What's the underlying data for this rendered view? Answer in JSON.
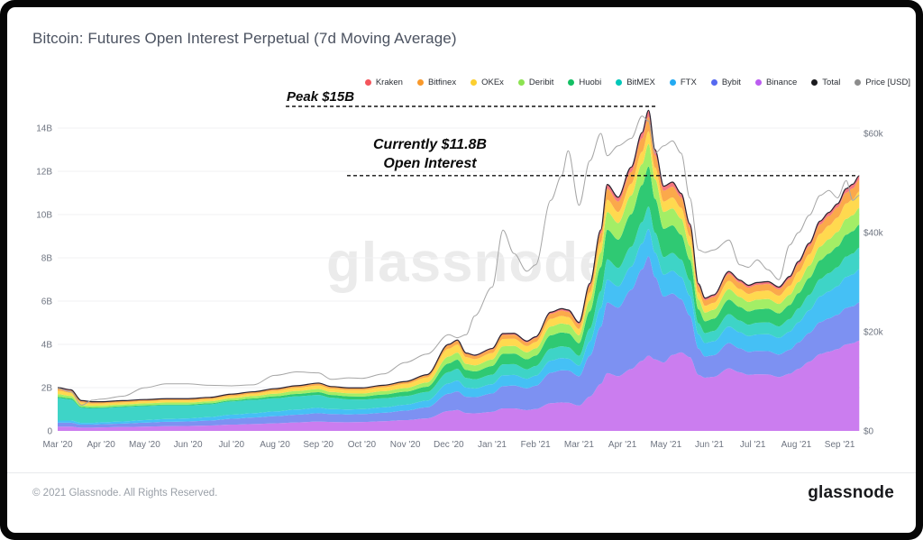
{
  "header": {
    "title": "Bitcoin: Futures Open Interest Perpetual (7d Moving Average)"
  },
  "watermark": "glassnode",
  "footer": {
    "copyright": "© 2021 Glassnode. All Rights Reserved.",
    "brand": "glassnode"
  },
  "annotations": {
    "peak": {
      "text": "Peak $15B",
      "value_b": 15,
      "t_from": 5.25,
      "t_to": 13.78
    },
    "current": {
      "line1": "Currently $11.8B",
      "line2": "Open Interest",
      "value_b": 11.8,
      "t_from": 6.66,
      "t_to": 18.42
    }
  },
  "chart_data": {
    "type": "area",
    "stacking": "normal",
    "title": "Bitcoin: Futures Open Interest Perpetual (7d Moving Average)",
    "x_unit": "months since 2020-03-01",
    "grid": "horizontal",
    "legend_position": "top-right",
    "x_tick_labels": [
      "Mar '20",
      "Apr '20",
      "May '20",
      "Jun '20",
      "Jul '20",
      "Aug '20",
      "Sep '20",
      "Oct '20",
      "Nov '20",
      "Dec '20",
      "Jan '21",
      "Feb '21",
      "Mar '21",
      "Apr '21",
      "May '21",
      "Jun '21",
      "Jul '21",
      "Aug '21",
      "Sep '21"
    ],
    "y_left": {
      "title": "Open Interest (USD billions)",
      "range": [
        0,
        15.3
      ],
      "ticks": [
        {
          "v": 0,
          "label": "0"
        },
        {
          "v": 2,
          "label": "2B"
        },
        {
          "v": 4,
          "label": "4B"
        },
        {
          "v": 6,
          "label": "6B"
        },
        {
          "v": 8,
          "label": "8B"
        },
        {
          "v": 10,
          "label": "10B"
        },
        {
          "v": 12,
          "label": "12B"
        },
        {
          "v": 14,
          "label": "14B"
        }
      ]
    },
    "y_right": {
      "title": "Price (USD)",
      "range": [
        0,
        66
      ],
      "ticks": [
        {
          "v": 0,
          "label": "$0"
        },
        {
          "v": 20,
          "label": "$20k"
        },
        {
          "v": 40,
          "label": "$40k"
        },
        {
          "v": 60,
          "label": "$60k"
        }
      ]
    },
    "x": [
      0,
      0.3,
      0.55,
      0.8,
      1,
      1.5,
      2,
      2.5,
      3,
      3.5,
      4,
      4.5,
      5,
      5.5,
      6,
      6.3,
      6.7,
      7,
      7.5,
      8,
      8.5,
      9,
      9.2,
      9.4,
      9.6,
      10,
      10.25,
      10.5,
      10.8,
      11,
      11.35,
      11.6,
      11.75,
      12,
      12.25,
      12.5,
      12.65,
      12.9,
      13.2,
      13.45,
      13.6,
      13.75,
      13.95,
      14.15,
      14.35,
      14.55,
      14.75,
      14.9,
      15.1,
      15.45,
      15.7,
      15.9,
      16.1,
      16.35,
      16.6,
      16.85,
      17.05,
      17.3,
      17.55,
      17.75,
      17.95,
      18.15,
      18.3,
      18.45
    ],
    "series": [
      {
        "name": "Binance",
        "unit": "USD billions",
        "dot": "#bb5cf0",
        "fill": "#cb7def",
        "values": [
          0.2,
          0.2,
          0.15,
          0.15,
          0.16,
          0.18,
          0.2,
          0.22,
          0.23,
          0.25,
          0.29,
          0.32,
          0.35,
          0.39,
          0.43,
          0.41,
          0.4,
          0.41,
          0.45,
          0.5,
          0.58,
          0.92,
          0.97,
          0.83,
          0.81,
          0.88,
          1.04,
          1.04,
          0.96,
          1.01,
          1.28,
          1.32,
          1.3,
          1.17,
          1.59,
          2.17,
          2.67,
          2.53,
          2.86,
          3.24,
          3.48,
          3.3,
          3.16,
          3.51,
          3.63,
          3.41,
          2.59,
          2.46,
          2.5,
          2.89,
          2.71,
          2.59,
          2.62,
          2.61,
          2.49,
          2.64,
          2.87,
          3.2,
          3.55,
          3.66,
          3.78,
          4.0,
          4.05,
          4.17
        ]
      },
      {
        "name": "Bybit",
        "unit": "USD billions",
        "dot": "#5569f0",
        "fill": "#7d91f2",
        "values": [
          0.18,
          0.18,
          0.14,
          0.14,
          0.15,
          0.16,
          0.18,
          0.2,
          0.21,
          0.23,
          0.27,
          0.3,
          0.33,
          0.36,
          0.39,
          0.37,
          0.36,
          0.37,
          0.39,
          0.44,
          0.51,
          0.8,
          0.86,
          0.75,
          0.75,
          0.85,
          1.03,
          1.06,
          1.01,
          1.08,
          1.41,
          1.48,
          1.49,
          1.36,
          1.89,
          2.64,
          3.27,
          3.17,
          3.66,
          4.23,
          4.59,
          3.81,
          3.05,
          2.84,
          2.46,
          1.92,
          1.21,
          0.98,
          1.0,
          1.17,
          1.1,
          1.06,
          1.08,
          1.08,
          1.04,
          1.11,
          1.22,
          1.33,
          1.48,
          1.54,
          1.59,
          1.69,
          1.71,
          1.77
        ]
      },
      {
        "name": "FTX",
        "unit": "USD billions",
        "dot": "#23aaf2",
        "fill": "#45c0f5",
        "values": [
          0.1,
          0.1,
          0.08,
          0.08,
          0.09,
          0.1,
          0.12,
          0.13,
          0.14,
          0.16,
          0.19,
          0.2,
          0.22,
          0.24,
          0.25,
          0.23,
          0.23,
          0.23,
          0.25,
          0.27,
          0.31,
          0.48,
          0.5,
          0.42,
          0.4,
          0.43,
          0.5,
          0.49,
          0.44,
          0.46,
          0.56,
          0.57,
          0.55,
          0.49,
          0.65,
          0.87,
          1.05,
          0.98,
          1.07,
          1.19,
          1.26,
          1.13,
          1.01,
          1.05,
          1.03,
          0.92,
          0.67,
          0.62,
          0.64,
          0.77,
          0.75,
          0.73,
          0.76,
          0.78,
          0.77,
          0.84,
          0.93,
          1.05,
          1.19,
          1.25,
          1.32,
          1.43,
          1.47,
          1.53
        ]
      },
      {
        "name": "BitMEX",
        "unit": "USD billions",
        "dot": "#00c7b9",
        "fill": "#3ed4c7",
        "values": [
          1.04,
          0.97,
          0.7,
          0.67,
          0.65,
          0.66,
          0.64,
          0.63,
          0.6,
          0.59,
          0.61,
          0.61,
          0.61,
          0.61,
          0.59,
          0.52,
          0.47,
          0.44,
          0.42,
          0.4,
          0.4,
          0.52,
          0.54,
          0.45,
          0.43,
          0.44,
          0.51,
          0.5,
          0.44,
          0.45,
          0.55,
          0.54,
          0.53,
          0.45,
          0.6,
          0.78,
          0.94,
          0.85,
          0.92,
          0.99,
          1.04,
          0.92,
          0.81,
          0.83,
          0.8,
          0.71,
          0.51,
          0.46,
          0.48,
          0.57,
          0.54,
          0.53,
          0.54,
          0.55,
          0.53,
          0.58,
          0.64,
          0.71,
          0.8,
          0.84,
          0.88,
          0.94,
          0.97,
          1.0
        ]
      },
      {
        "name": "Huobi",
        "unit": "USD billions",
        "dot": "#13bf63",
        "fill": "#2fc973",
        "values": [
          0.06,
          0.06,
          0.04,
          0.04,
          0.04,
          0.04,
          0.04,
          0.04,
          0.04,
          0.05,
          0.05,
          0.07,
          0.09,
          0.11,
          0.13,
          0.13,
          0.14,
          0.14,
          0.17,
          0.2,
          0.24,
          0.4,
          0.42,
          0.37,
          0.36,
          0.4,
          0.48,
          0.49,
          0.46,
          0.48,
          0.62,
          0.64,
          0.64,
          0.58,
          0.8,
          1.11,
          1.37,
          1.31,
          1.5,
          1.71,
          1.85,
          1.57,
          1.31,
          1.27,
          1.15,
          0.95,
          0.64,
          0.55,
          0.57,
          0.67,
          0.63,
          0.61,
          0.62,
          0.63,
          0.6,
          0.65,
          0.71,
          0.78,
          0.87,
          0.91,
          0.95,
          1.01,
          1.03,
          1.06
        ]
      },
      {
        "name": "Deribit",
        "unit": "USD billions",
        "dot": "#8ce351",
        "fill": "#a3ee66",
        "values": [
          0.12,
          0.11,
          0.08,
          0.08,
          0.08,
          0.08,
          0.09,
          0.09,
          0.09,
          0.09,
          0.1,
          0.11,
          0.12,
          0.14,
          0.15,
          0.14,
          0.14,
          0.14,
          0.16,
          0.17,
          0.2,
          0.32,
          0.33,
          0.28,
          0.28,
          0.3,
          0.35,
          0.35,
          0.32,
          0.33,
          0.41,
          0.42,
          0.41,
          0.37,
          0.5,
          0.67,
          0.82,
          0.77,
          0.87,
          0.97,
          1.04,
          0.9,
          0.78,
          0.78,
          0.74,
          0.64,
          0.45,
          0.4,
          0.41,
          0.48,
          0.46,
          0.44,
          0.45,
          0.45,
          0.44,
          0.47,
          0.51,
          0.57,
          0.63,
          0.66,
          0.68,
          0.73,
          0.74,
          0.77
        ]
      },
      {
        "name": "OKEx",
        "unit": "USD billions",
        "dot": "#fccf2f",
        "fill": "#ffd94f",
        "values": [
          0.16,
          0.15,
          0.11,
          0.1,
          0.1,
          0.1,
          0.1,
          0.1,
          0.1,
          0.1,
          0.1,
          0.11,
          0.13,
          0.14,
          0.16,
          0.15,
          0.15,
          0.16,
          0.17,
          0.19,
          0.23,
          0.36,
          0.37,
          0.31,
          0.29,
          0.3,
          0.34,
          0.33,
          0.29,
          0.3,
          0.35,
          0.35,
          0.34,
          0.29,
          0.37,
          0.48,
          0.57,
          0.51,
          0.54,
          0.57,
          0.59,
          0.54,
          0.48,
          0.51,
          0.5,
          0.45,
          0.33,
          0.31,
          0.32,
          0.39,
          0.37,
          0.37,
          0.38,
          0.39,
          0.38,
          0.42,
          0.47,
          0.52,
          0.59,
          0.63,
          0.66,
          0.71,
          0.73,
          0.77
        ]
      },
      {
        "name": "Bitfinex",
        "unit": "USD billions",
        "dot": "#f9992b",
        "fill": "#fba94b",
        "values": [
          0.1,
          0.09,
          0.07,
          0.06,
          0.06,
          0.06,
          0.06,
          0.06,
          0.06,
          0.06,
          0.07,
          0.07,
          0.08,
          0.08,
          0.09,
          0.08,
          0.08,
          0.08,
          0.08,
          0.09,
          0.1,
          0.16,
          0.17,
          0.15,
          0.14,
          0.16,
          0.19,
          0.19,
          0.17,
          0.18,
          0.23,
          0.24,
          0.24,
          0.22,
          0.3,
          0.41,
          0.5,
          0.48,
          0.54,
          0.62,
          0.67,
          0.58,
          0.5,
          0.5,
          0.48,
          0.41,
          0.29,
          0.26,
          0.27,
          0.31,
          0.3,
          0.29,
          0.3,
          0.3,
          0.29,
          0.31,
          0.35,
          0.38,
          0.43,
          0.44,
          0.47,
          0.5,
          0.51,
          0.53
        ]
      },
      {
        "name": "Kraken",
        "unit": "USD billions",
        "dot": "#f4555c",
        "fill": "#f5777f",
        "values": [
          0.04,
          0.04,
          0.03,
          0.03,
          0.02,
          0.02,
          0.02,
          0.02,
          0.02,
          0.02,
          0.02,
          0.02,
          0.02,
          0.02,
          0.02,
          0.02,
          0.02,
          0.02,
          0.02,
          0.02,
          0.03,
          0.04,
          0.04,
          0.04,
          0.04,
          0.05,
          0.06,
          0.06,
          0.06,
          0.06,
          0.08,
          0.09,
          0.09,
          0.08,
          0.12,
          0.16,
          0.2,
          0.2,
          0.23,
          0.27,
          0.3,
          0.25,
          0.21,
          0.21,
          0.19,
          0.16,
          0.11,
          0.1,
          0.1,
          0.12,
          0.11,
          0.11,
          0.11,
          0.11,
          0.11,
          0.12,
          0.13,
          0.14,
          0.16,
          0.17,
          0.17,
          0.19,
          0.19,
          0.2
        ]
      }
    ],
    "total": {
      "name": "Total",
      "unit": "USD billions",
      "dot": "#1a1a1e",
      "line": "#2a2330",
      "values": [
        2.0,
        1.9,
        1.4,
        1.35,
        1.35,
        1.4,
        1.45,
        1.49,
        1.49,
        1.55,
        1.7,
        1.81,
        1.95,
        2.09,
        2.21,
        2.05,
        1.99,
        1.99,
        2.11,
        2.28,
        2.6,
        4.0,
        4.2,
        3.6,
        3.5,
        3.81,
        4.5,
        4.51,
        4.15,
        4.35,
        5.49,
        5.65,
        5.59,
        5.01,
        6.82,
        9.29,
        11.39,
        10.8,
        12.19,
        13.79,
        14.82,
        13.0,
        11.31,
        11.5,
        10.98,
        9.57,
        6.8,
        6.14,
        6.29,
        7.37,
        6.97,
        6.73,
        6.86,
        6.9,
        6.65,
        7.14,
        7.83,
        8.68,
        9.7,
        10.1,
        10.5,
        11.2,
        11.4,
        11.8
      ]
    },
    "price": {
      "name": "Price [USD]",
      "unit": "USD thousands",
      "axis": "right",
      "dot": "#8c8c8c",
      "line": "#a6a6a6",
      "values": [
        8.6,
        7.9,
        5.2,
        6.2,
        6.4,
        7.0,
        8.7,
        9.5,
        9.5,
        9.2,
        9.1,
        9.3,
        11.2,
        11.9,
        11.7,
        10.4,
        10.7,
        10.6,
        11.5,
        13.8,
        15.5,
        19.4,
        18.8,
        19.4,
        23.2,
        29.0,
        40.5,
        35.8,
        32.2,
        33.5,
        46.5,
        51.5,
        56.5,
        45.5,
        54.5,
        60.0,
        55.5,
        57.5,
        59.0,
        63.5,
        62.5,
        56.0,
        57.5,
        58.5,
        56.0,
        47.0,
        36.5,
        36.0,
        36.5,
        38.5,
        33.5,
        33.0,
        34.5,
        32.5,
        30.5,
        37.5,
        40.0,
        43.5,
        47.5,
        48.5,
        47.0,
        50.5,
        46.5,
        47.5
      ]
    },
    "legend": [
      "Kraken",
      "Bitfinex",
      "OKEx",
      "Deribit",
      "Huobi",
      "BitMEX",
      "FTX",
      "Bybit",
      "Binance",
      "Total",
      "Price [USD]"
    ]
  }
}
